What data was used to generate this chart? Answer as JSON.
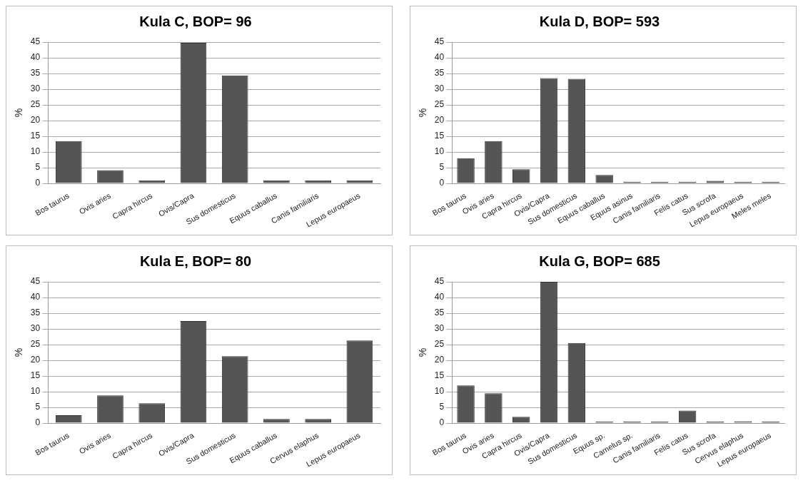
{
  "chart_data": [
    {
      "type": "bar",
      "title": "Kula C, BOP= 96",
      "ylabel": "%",
      "categories": [
        "Bos taurus",
        "Ovis aries",
        "Capra hircus",
        "Ovis/Capra",
        "Sus domesticus",
        "Equus caballus",
        "Canis familiaris",
        "Lepus europaeus"
      ],
      "values": [
        13.5,
        4.2,
        1,
        44.8,
        34.4,
        1,
        1,
        1
      ],
      "color": "#555555",
      "ylim": [
        0,
        45
      ],
      "yticks": [
        0,
        5,
        10,
        15,
        20,
        25,
        30,
        35,
        40,
        45
      ],
      "grid": "y",
      "legend": false
    },
    {
      "type": "bar",
      "title": "Kula D, BOP= 593",
      "ylabel": "%",
      "categories": [
        "Bos taurus",
        "Ovis aries",
        "Capra hircus",
        "Ovis/Capra",
        "Sus domesticus",
        "Equus caballus",
        "Equus asinus",
        "Canis familiaris",
        "Felis catus",
        "Sus scrofa",
        "Lepus europaeus",
        "Meles meles"
      ],
      "values": [
        8,
        13.5,
        4.5,
        33.5,
        33.3,
        2.7,
        0.5,
        0.5,
        0.5,
        0.8,
        0.5,
        0.5
      ],
      "color": "#555555",
      "ylim": [
        0,
        45
      ],
      "yticks": [
        0,
        5,
        10,
        15,
        20,
        25,
        30,
        35,
        40,
        45
      ],
      "grid": "y",
      "legend": false
    },
    {
      "type": "bar",
      "title": "Kula E, BOP= 80",
      "ylabel": "%",
      "categories": [
        "Bos taurus",
        "Ovis aries",
        "Capra hircus",
        "Ovis/Capra",
        "Sus domesticus",
        "Equus caballus",
        "Cervus elaphus",
        "Lepus europaeus"
      ],
      "values": [
        2.5,
        8.8,
        6.3,
        32.5,
        21.3,
        1.3,
        1.3,
        26.3
      ],
      "color": "#555555",
      "ylim": [
        0,
        45
      ],
      "yticks": [
        0,
        5,
        10,
        15,
        20,
        25,
        30,
        35,
        40,
        45
      ],
      "grid": "y",
      "legend": false
    },
    {
      "type": "bar",
      "title": "Kula G, BOP= 685",
      "ylabel": "%",
      "categories": [
        "Bos taurus",
        "Ovis aries",
        "Capra hircus",
        "Ovis/Capra",
        "Sus domesticus",
        "Equus sp.",
        "Camelus sp.",
        "Canis familiaris",
        "Felis catus",
        "Sus scrofa",
        "Cervus elaphus",
        "Lepus europaeus"
      ],
      "values": [
        12,
        9.5,
        2,
        45,
        25.5,
        0.5,
        0.5,
        0.5,
        4,
        0.5,
        0.6,
        0.5
      ],
      "color": "#555555",
      "ylim": [
        0,
        45
      ],
      "yticks": [
        0,
        5,
        10,
        15,
        20,
        25,
        30,
        35,
        40,
        45
      ],
      "grid": "y",
      "legend": false
    }
  ]
}
